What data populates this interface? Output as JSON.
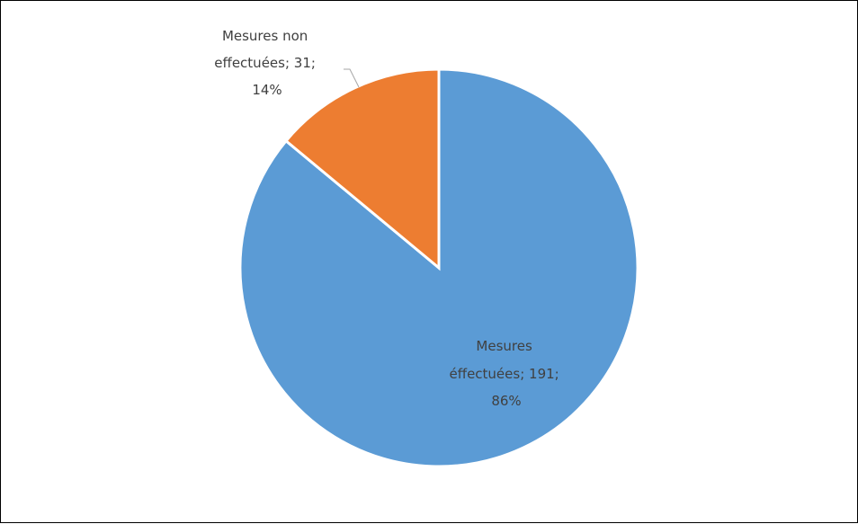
{
  "chart_data": {
    "type": "pie",
    "title": "",
    "categories": [
      "Mesures effectuées",
      "Mesures non effectuées"
    ],
    "values": [
      191,
      31
    ],
    "percentages": [
      "86%",
      "14%"
    ],
    "colors": [
      "#5b9bd5",
      "#ed7d31"
    ],
    "labels": {
      "effectuees": {
        "line1": "Mesures",
        "line2": "éffectuées; 191;",
        "line3": "86%"
      },
      "non_effectuees": {
        "line1": "Mesures non",
        "line2": "effectuées; 31;",
        "line3": "14%"
      }
    },
    "legend": "none"
  }
}
